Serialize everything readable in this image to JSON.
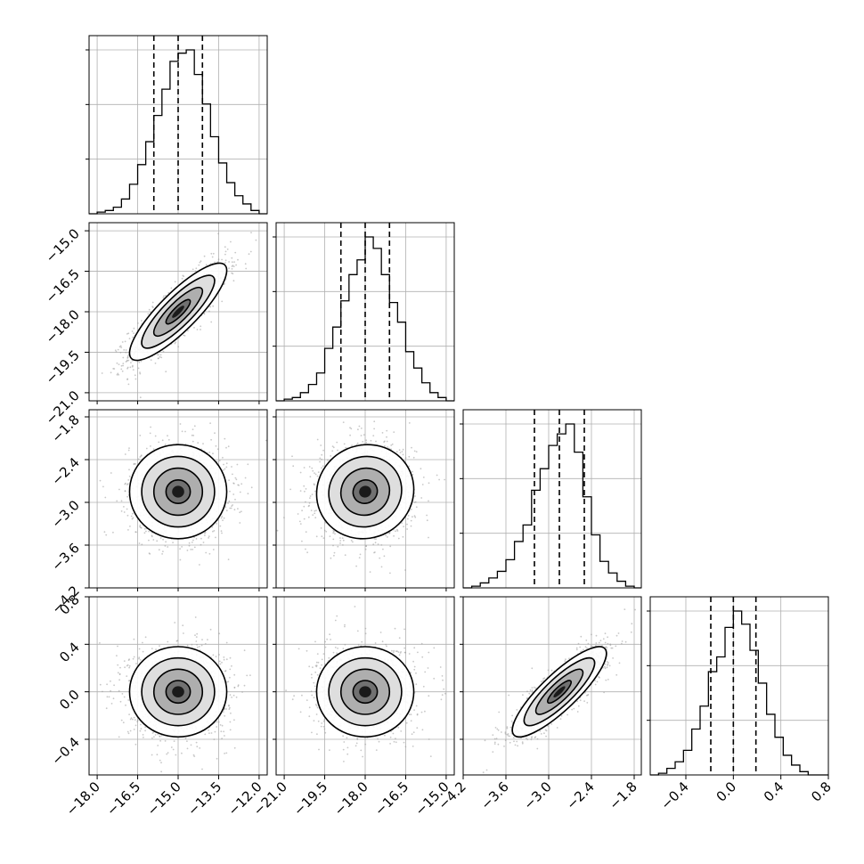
{
  "chart_data": {
    "type": "corner",
    "grid": true,
    "parameters": [
      {
        "range": [
          -18.3,
          -11.7
        ],
        "ticks": [
          -18.0,
          -16.5,
          -15.0,
          -13.5,
          -12.0
        ],
        "tick_labels": [
          "−18.0",
          "−16.5",
          "−15.0",
          "−13.5",
          "−12.0"
        ],
        "quantiles": [
          -15.9,
          -15.0,
          -14.1
        ]
      },
      {
        "range": [
          -21.3,
          -14.7
        ],
        "ticks": [
          -21.0,
          -19.5,
          -18.0,
          -16.5,
          -15.0
        ],
        "tick_labels": [
          "−21.0",
          "−19.5",
          "−18.0",
          "−16.5",
          "−15.0"
        ],
        "quantiles": [
          -18.9,
          -18.0,
          -17.1
        ]
      },
      {
        "range": [
          -4.2,
          -1.7
        ],
        "ticks": [
          -4.2,
          -3.6,
          -3.0,
          -2.4,
          -1.8
        ],
        "tick_labels": [
          "−4.2",
          "−3.6",
          "−3.0",
          "−2.4",
          "−1.8"
        ],
        "quantiles": [
          -3.2,
          -2.85,
          -2.5
        ]
      },
      {
        "range": [
          -0.7,
          0.8
        ],
        "ticks": [
          -0.4,
          0.0,
          0.4,
          0.8
        ],
        "tick_labels": [
          "−0.4",
          "0.0",
          "0.4",
          "0.8"
        ],
        "y_ticks": [
          -0.4,
          0.0,
          0.4,
          0.8
        ],
        "y_tick_labels": [
          "−0.4",
          "0.0",
          "0.4",
          "0.8"
        ],
        "quantiles": [
          -0.19,
          0.0,
          0.19
        ]
      }
    ],
    "histograms": [
      {
        "bin_edges": [
          -18.3,
          -18.0,
          -17.7,
          -17.4,
          -17.1,
          -16.8,
          -16.5,
          -16.2,
          -15.9,
          -15.6,
          -15.3,
          -15.0,
          -14.7,
          -14.4,
          -14.1,
          -13.8,
          -13.5,
          -13.2,
          -12.9,
          -12.6,
          -12.3,
          -12.0,
          -11.7
        ],
        "counts": [
          0.0,
          0.01,
          0.02,
          0.04,
          0.09,
          0.18,
          0.3,
          0.44,
          0.6,
          0.76,
          0.93,
          0.98,
          1.0,
          0.85,
          0.67,
          0.47,
          0.31,
          0.19,
          0.11,
          0.06,
          0.02,
          0.0
        ]
      },
      {
        "bin_edges": [
          -21.3,
          -21.0,
          -20.7,
          -20.4,
          -20.1,
          -19.8,
          -19.5,
          -19.2,
          -18.9,
          -18.6,
          -18.3,
          -18.0,
          -17.7,
          -17.4,
          -17.1,
          -16.8,
          -16.5,
          -16.2,
          -15.9,
          -15.6,
          -15.3,
          -15.0,
          -14.7
        ],
        "counts": [
          0.0,
          0.01,
          0.02,
          0.05,
          0.1,
          0.17,
          0.32,
          0.45,
          0.61,
          0.77,
          0.86,
          1.0,
          0.93,
          0.77,
          0.6,
          0.48,
          0.3,
          0.2,
          0.11,
          0.05,
          0.02,
          0.0
        ]
      },
      {
        "bin_edges": [
          -4.2,
          -4.08,
          -3.96,
          -3.84,
          -3.72,
          -3.6,
          -3.48,
          -3.36,
          -3.24,
          -3.12,
          -3.0,
          -2.88,
          -2.76,
          -2.64,
          -2.52,
          -2.4,
          -2.28,
          -2.16,
          -2.04,
          -1.92,
          -1.8,
          -1.7
        ],
        "counts": [
          0.0,
          0.01,
          0.03,
          0.06,
          0.1,
          0.17,
          0.28,
          0.38,
          0.59,
          0.72,
          0.86,
          0.93,
          0.99,
          0.82,
          0.55,
          0.32,
          0.16,
          0.09,
          0.04,
          0.01,
          0.0
        ]
      },
      {
        "bin_edges": [
          -0.7,
          -0.63,
          -0.56,
          -0.49,
          -0.42,
          -0.35,
          -0.28,
          -0.21,
          -0.14,
          -0.07,
          0.0,
          0.07,
          0.14,
          0.21,
          0.28,
          0.35,
          0.42,
          0.49,
          0.56,
          0.63,
          0.7,
          0.8
        ],
        "counts": [
          0.0,
          0.01,
          0.04,
          0.08,
          0.15,
          0.28,
          0.42,
          0.63,
          0.72,
          0.9,
          1.0,
          0.92,
          0.76,
          0.56,
          0.37,
          0.23,
          0.12,
          0.06,
          0.02,
          0.0,
          0.0
        ]
      }
    ],
    "pairs": [
      {
        "x": 0,
        "y": 1,
        "center": [
          -15.0,
          -18.0
        ],
        "sd": [
          0.9,
          0.9
        ],
        "rho": 0.85
      },
      {
        "x": 0,
        "y": 2,
        "center": [
          -15.0,
          -2.85
        ],
        "sd": [
          0.9,
          0.33
        ],
        "rho": 0.0
      },
      {
        "x": 1,
        "y": 2,
        "center": [
          -18.0,
          -2.85
        ],
        "sd": [
          0.9,
          0.33
        ],
        "rho": 0.05
      },
      {
        "x": 0,
        "y": 3,
        "center": [
          -15.0,
          0.0
        ],
        "sd": [
          0.9,
          0.19
        ],
        "rho": 0.0
      },
      {
        "x": 1,
        "y": 3,
        "center": [
          -18.0,
          0.0
        ],
        "sd": [
          0.9,
          0.19
        ],
        "rho": 0.0
      },
      {
        "x": 2,
        "y": 3,
        "center": [
          -2.85,
          0.0
        ],
        "sd": [
          0.33,
          0.19
        ],
        "rho": 0.85
      }
    ],
    "contour_sigma_levels": [
      0.5,
      1.0,
      1.5,
      2.0
    ]
  }
}
